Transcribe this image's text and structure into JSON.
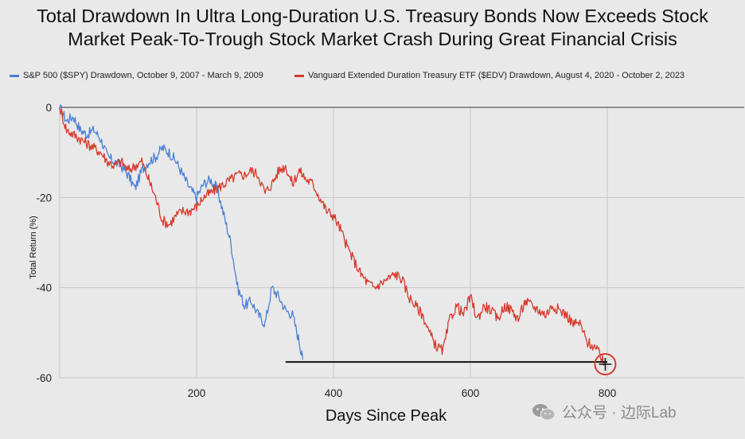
{
  "chart_data": {
    "type": "line",
    "title": "Total Drawdown In Ultra Long-Duration U.S. Treasury Bonds Now Exceeds Stock\nMarket Peak-To-Trough Stock Market Crash During Great Financial Crisis",
    "xlabel": "Days Since Peak",
    "ylabel": "Total Return (%)",
    "xlim": [
      0,
      1000
    ],
    "ylim": [
      -60,
      0
    ],
    "xticks": [
      200,
      400,
      600,
      800
    ],
    "yticks": [
      0,
      -20,
      -40,
      -60
    ],
    "grid": true,
    "legend_position": "top",
    "series": [
      {
        "name": "S&P 500 ($SPY) Drawdown, October 9, 2007 - March 9, 2009",
        "color": "#4a80d4",
        "x": [
          0,
          10,
          20,
          30,
          40,
          50,
          60,
          70,
          80,
          90,
          100,
          110,
          120,
          130,
          140,
          150,
          160,
          170,
          180,
          190,
          200,
          210,
          220,
          230,
          240,
          250,
          260,
          270,
          280,
          290,
          300,
          310,
          320,
          330,
          340,
          350,
          355
        ],
        "y": [
          0,
          -3,
          -2,
          -5,
          -6,
          -5,
          -7,
          -11,
          -12,
          -13,
          -15,
          -18,
          -14,
          -12,
          -11,
          -9,
          -10,
          -12,
          -15,
          -18,
          -20,
          -17,
          -16,
          -18,
          -24,
          -30,
          -40,
          -44,
          -43,
          -46,
          -48,
          -40,
          -42,
          -45,
          -46,
          -52,
          -56
        ]
      },
      {
        "name": "Vanguard Extended Duration Treasury ETF ($EDV) Drawdown, August 4, 2020 - October 2, 2023",
        "color": "#d63a2c",
        "x": [
          0,
          10,
          20,
          30,
          40,
          50,
          60,
          70,
          80,
          90,
          100,
          110,
          120,
          130,
          140,
          150,
          160,
          170,
          180,
          190,
          200,
          210,
          220,
          230,
          240,
          250,
          260,
          270,
          280,
          290,
          300,
          310,
          320,
          330,
          340,
          350,
          360,
          370,
          380,
          390,
          400,
          410,
          420,
          430,
          440,
          450,
          460,
          470,
          480,
          490,
          500,
          510,
          520,
          530,
          540,
          550,
          560,
          570,
          580,
          590,
          600,
          610,
          620,
          630,
          640,
          650,
          660,
          670,
          680,
          690,
          700,
          710,
          720,
          730,
          740,
          750,
          760,
          770,
          780,
          790,
          795
        ],
        "y": [
          0,
          -5,
          -6,
          -7,
          -8,
          -9,
          -10,
          -12,
          -13,
          -12,
          -14,
          -13,
          -12,
          -16,
          -20,
          -25,
          -26,
          -24,
          -23,
          -23,
          -22,
          -20,
          -19,
          -18,
          -17,
          -16,
          -15,
          -15,
          -14,
          -15,
          -19,
          -17,
          -14,
          -13,
          -17,
          -14,
          -16,
          -17,
          -20,
          -23,
          -24,
          -27,
          -31,
          -34,
          -37,
          -39,
          -40,
          -39,
          -38,
          -37,
          -38,
          -42,
          -44,
          -46,
          -50,
          -53,
          -54,
          -47,
          -44,
          -46,
          -42,
          -47,
          -44,
          -45,
          -47,
          -44,
          -45,
          -47,
          -43,
          -44,
          -45,
          -46,
          -44,
          -45,
          -46,
          -48,
          -48,
          -52,
          -53,
          -55,
          -57
        ]
      }
    ],
    "annotations": {
      "horizontal_line": {
        "y": -56.5,
        "x_start": 330,
        "x_end": 800,
        "color": "#111111"
      },
      "circle_marker": {
        "x": 797,
        "y": -57,
        "color": "#d63a2c"
      }
    }
  },
  "watermark": {
    "text": "公众号 · 边际Lab",
    "icon": "wechat-icon"
  }
}
